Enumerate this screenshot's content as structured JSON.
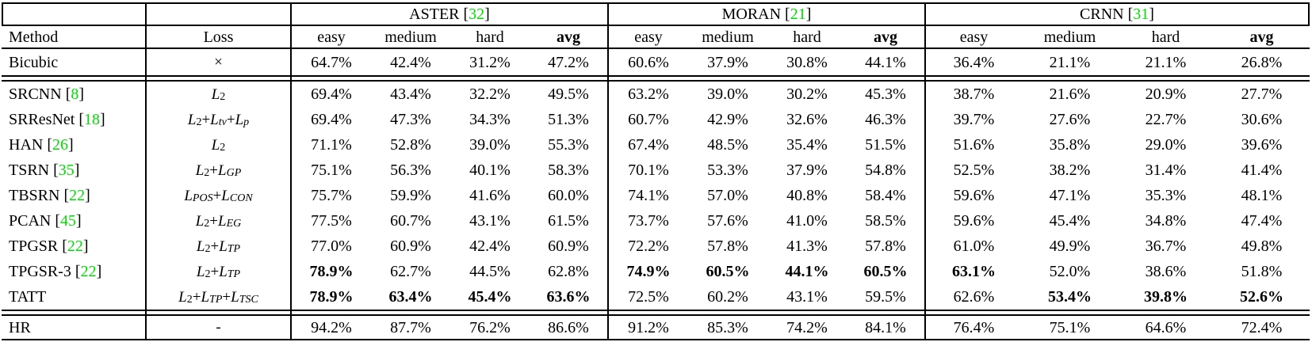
{
  "colors": {
    "cite_green": "#00dd00",
    "rule_black": "#000000"
  },
  "groups": [
    {
      "label": "ASTER",
      "cite": "32"
    },
    {
      "label": "MORAN",
      "cite": "21"
    },
    {
      "label": "CRNN",
      "cite": "31"
    }
  ],
  "columns": {
    "method": "Method",
    "loss": "Loss",
    "metrics": [
      "easy",
      "medium",
      "hard",
      "avg"
    ],
    "metrics_bold": [
      false,
      false,
      false,
      true
    ]
  },
  "rows": [
    {
      "group": "baseline",
      "method": "Bicubic",
      "cite": "",
      "loss": "×",
      "values": [
        [
          "64.7%",
          "42.4%",
          "31.2%",
          "47.2%"
        ],
        [
          "60.6%",
          "37.9%",
          "30.8%",
          "44.1%"
        ],
        [
          "36.4%",
          "21.1%",
          "21.1%",
          "26.8%"
        ]
      ],
      "bold": [
        [
          0,
          0,
          0,
          0
        ],
        [
          0,
          0,
          0,
          0
        ],
        [
          0,
          0,
          0,
          0
        ]
      ]
    },
    {
      "group": "sr",
      "method": "SRCNN",
      "cite": "8",
      "loss": "L_2",
      "values": [
        [
          "69.4%",
          "43.4%",
          "32.2%",
          "49.5%"
        ],
        [
          "63.2%",
          "39.0%",
          "30.2%",
          "45.3%"
        ],
        [
          "38.7%",
          "21.6%",
          "20.9%",
          "27.7%"
        ]
      ],
      "bold": [
        [
          0,
          0,
          0,
          0
        ],
        [
          0,
          0,
          0,
          0
        ],
        [
          0,
          0,
          0,
          0
        ]
      ]
    },
    {
      "group": "sr",
      "method": "SRResNet",
      "cite": "18",
      "loss": "L_2+L_tv+L_p",
      "values": [
        [
          "69.4%",
          "47.3%",
          "34.3%",
          "51.3%"
        ],
        [
          "60.7%",
          "42.9%",
          "32.6%",
          "46.3%"
        ],
        [
          "39.7%",
          "27.6%",
          "22.7%",
          "30.6%"
        ]
      ],
      "bold": [
        [
          0,
          0,
          0,
          0
        ],
        [
          0,
          0,
          0,
          0
        ],
        [
          0,
          0,
          0,
          0
        ]
      ]
    },
    {
      "group": "sr",
      "method": "HAN",
      "cite": "26",
      "loss": "L_2",
      "values": [
        [
          "71.1%",
          "52.8%",
          "39.0%",
          "55.3%"
        ],
        [
          "67.4%",
          "48.5%",
          "35.4%",
          "51.5%"
        ],
        [
          "51.6%",
          "35.8%",
          "29.0%",
          "39.6%"
        ]
      ],
      "bold": [
        [
          0,
          0,
          0,
          0
        ],
        [
          0,
          0,
          0,
          0
        ],
        [
          0,
          0,
          0,
          0
        ]
      ]
    },
    {
      "group": "sr",
      "method": "TSRN",
      "cite": "35",
      "loss": "L_2+L_GP",
      "values": [
        [
          "75.1%",
          "56.3%",
          "40.1%",
          "58.3%"
        ],
        [
          "70.1%",
          "53.3%",
          "37.9%",
          "54.8%"
        ],
        [
          "52.5%",
          "38.2%",
          "31.4%",
          "41.4%"
        ]
      ],
      "bold": [
        [
          0,
          0,
          0,
          0
        ],
        [
          0,
          0,
          0,
          0
        ],
        [
          0,
          0,
          0,
          0
        ]
      ]
    },
    {
      "group": "sr",
      "method": "TBSRN",
      "cite": "22",
      "loss": "L_POS+L_CON",
      "values": [
        [
          "75.7%",
          "59.9%",
          "41.6%",
          "60.0%"
        ],
        [
          "74.1%",
          "57.0%",
          "40.8%",
          "58.4%"
        ],
        [
          "59.6%",
          "47.1%",
          "35.3%",
          "48.1%"
        ]
      ],
      "bold": [
        [
          0,
          0,
          0,
          0
        ],
        [
          0,
          0,
          0,
          0
        ],
        [
          0,
          0,
          0,
          0
        ]
      ]
    },
    {
      "group": "sr",
      "method": "PCAN",
      "cite": "45",
      "loss": "L_2+L_EG",
      "values": [
        [
          "77.5%",
          "60.7%",
          "43.1%",
          "61.5%"
        ],
        [
          "73.7%",
          "57.6%",
          "41.0%",
          "58.5%"
        ],
        [
          "59.6%",
          "45.4%",
          "34.8%",
          "47.4%"
        ]
      ],
      "bold": [
        [
          0,
          0,
          0,
          0
        ],
        [
          0,
          0,
          0,
          0
        ],
        [
          0,
          0,
          0,
          0
        ]
      ]
    },
    {
      "group": "sr",
      "method": "TPGSR",
      "cite": "22",
      "loss": "L_2+L_TP",
      "values": [
        [
          "77.0%",
          "60.9%",
          "42.4%",
          "60.9%"
        ],
        [
          "72.2%",
          "57.8%",
          "41.3%",
          "57.8%"
        ],
        [
          "61.0%",
          "49.9%",
          "36.7%",
          "49.8%"
        ]
      ],
      "bold": [
        [
          0,
          0,
          0,
          0
        ],
        [
          0,
          0,
          0,
          0
        ],
        [
          0,
          0,
          0,
          0
        ]
      ]
    },
    {
      "group": "sr",
      "method": "TPGSR-3",
      "cite": "22",
      "loss": "L_2+L_TP",
      "values": [
        [
          "78.9%",
          "62.7%",
          "44.5%",
          "62.8%"
        ],
        [
          "74.9%",
          "60.5%",
          "44.1%",
          "60.5%"
        ],
        [
          "63.1%",
          "52.0%",
          "38.6%",
          "51.8%"
        ]
      ],
      "bold": [
        [
          1,
          0,
          0,
          0
        ],
        [
          1,
          1,
          1,
          1
        ],
        [
          1,
          0,
          0,
          0
        ]
      ]
    },
    {
      "group": "sr",
      "method": "TATT",
      "cite": "",
      "loss": "L_2+L_TP+L_TSC",
      "values": [
        [
          "78.9%",
          "63.4%",
          "45.4%",
          "63.6%"
        ],
        [
          "72.5%",
          "60.2%",
          "43.1%",
          "59.5%"
        ],
        [
          "62.6%",
          "53.4%",
          "39.8%",
          "52.6%"
        ]
      ],
      "bold": [
        [
          1,
          1,
          1,
          1
        ],
        [
          0,
          0,
          0,
          0
        ],
        [
          0,
          1,
          1,
          1
        ]
      ]
    },
    {
      "group": "hr",
      "method": "HR",
      "cite": "",
      "loss": "-",
      "values": [
        [
          "94.2%",
          "87.7%",
          "76.2%",
          "86.6%"
        ],
        [
          "91.2%",
          "85.3%",
          "74.2%",
          "84.1%"
        ],
        [
          "76.4%",
          "75.1%",
          "64.6%",
          "72.4%"
        ]
      ],
      "bold": [
        [
          0,
          0,
          0,
          0
        ],
        [
          0,
          0,
          0,
          0
        ],
        [
          0,
          0,
          0,
          0
        ]
      ]
    }
  ]
}
